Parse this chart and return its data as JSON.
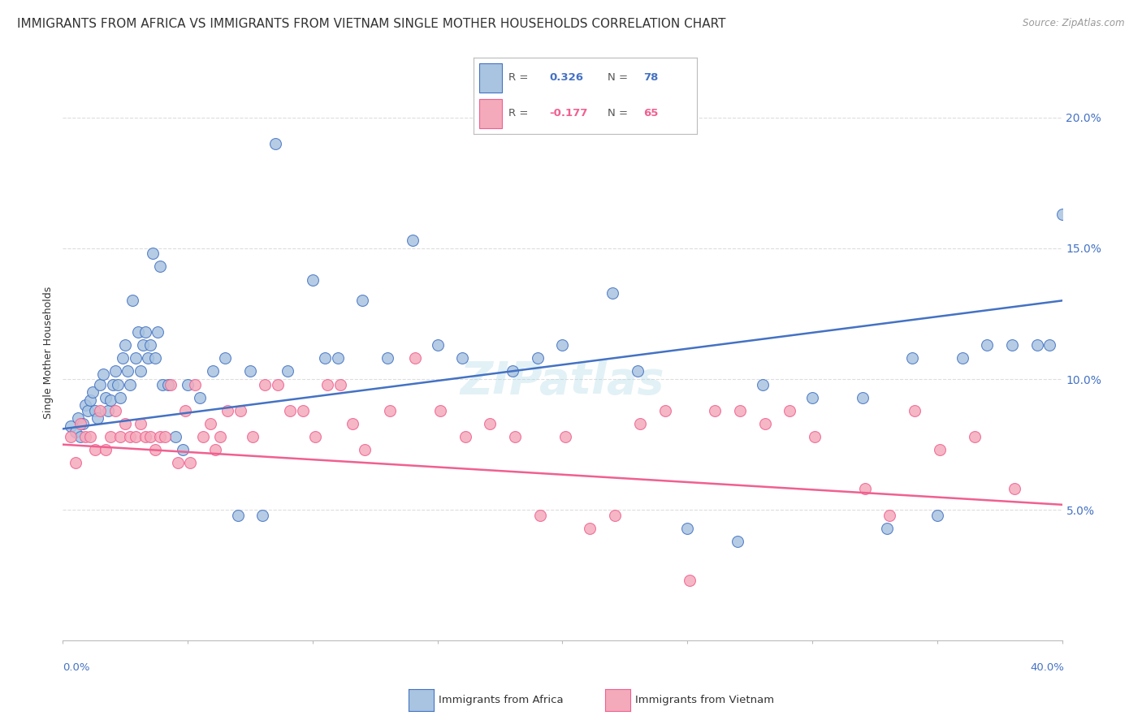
{
  "title": "IMMIGRANTS FROM AFRICA VS IMMIGRANTS FROM VIETNAM SINGLE MOTHER HOUSEHOLDS CORRELATION CHART",
  "source": "Source: ZipAtlas.com",
  "ylabel": "Single Mother Households",
  "legend_africa": "Immigrants from Africa",
  "legend_vietnam": "Immigrants from Vietnam",
  "legend_r_africa": "R =  0.326",
  "legend_n_africa": "N = 78",
  "legend_r_vietnam": "R = -0.177",
  "legend_n_vietnam": "N = 65",
  "color_africa": "#A8C4E0",
  "color_vietnam": "#F4AABB",
  "color_africa_line": "#4472C4",
  "color_vietnam_line": "#F06090",
  "africa_x": [
    0.3,
    0.5,
    0.6,
    0.7,
    0.8,
    0.9,
    1.0,
    1.1,
    1.2,
    1.3,
    1.4,
    1.5,
    1.6,
    1.7,
    1.8,
    1.9,
    2.0,
    2.1,
    2.2,
    2.3,
    2.4,
    2.5,
    2.6,
    2.7,
    2.8,
    2.9,
    3.0,
    3.1,
    3.2,
    3.3,
    3.4,
    3.5,
    3.6,
    3.7,
    3.8,
    3.9,
    4.0,
    4.2,
    4.5,
    4.8,
    5.0,
    5.5,
    6.0,
    6.5,
    7.0,
    7.5,
    8.0,
    8.5,
    9.0,
    10.0,
    10.5,
    11.0,
    12.0,
    13.0,
    14.0,
    15.0,
    16.0,
    18.0,
    19.0,
    20.0,
    22.0,
    23.0,
    25.0,
    27.0,
    28.0,
    30.0,
    32.0,
    33.0,
    34.0,
    35.0,
    36.0,
    37.0,
    38.0,
    39.0,
    39.5,
    40.0,
    40.5,
    41.0
  ],
  "africa_y": [
    8.2,
    8.0,
    8.5,
    7.8,
    8.3,
    9.0,
    8.8,
    9.2,
    9.5,
    8.8,
    8.5,
    9.8,
    10.2,
    9.3,
    8.8,
    9.2,
    9.8,
    10.3,
    9.8,
    9.3,
    10.8,
    11.3,
    10.3,
    9.8,
    13.0,
    10.8,
    11.8,
    10.3,
    11.3,
    11.8,
    10.8,
    11.3,
    14.8,
    10.8,
    11.8,
    14.3,
    9.8,
    9.8,
    7.8,
    7.3,
    9.8,
    9.3,
    10.3,
    10.8,
    4.8,
    10.3,
    4.8,
    19.0,
    10.3,
    13.8,
    10.8,
    10.8,
    13.0,
    10.8,
    15.3,
    11.3,
    10.8,
    10.3,
    10.8,
    11.3,
    13.3,
    10.3,
    4.3,
    3.8,
    9.8,
    9.3,
    9.3,
    4.3,
    10.8,
    4.8,
    10.8,
    11.3,
    11.3,
    11.3,
    11.3,
    16.3,
    11.3,
    11.3
  ],
  "vietnam_x": [
    0.3,
    0.5,
    0.7,
    0.9,
    1.1,
    1.3,
    1.5,
    1.7,
    1.9,
    2.1,
    2.3,
    2.5,
    2.7,
    2.9,
    3.1,
    3.3,
    3.5,
    3.7,
    3.9,
    4.1,
    4.3,
    4.6,
    4.9,
    5.1,
    5.3,
    5.6,
    5.9,
    6.1,
    6.3,
    6.6,
    7.1,
    7.6,
    8.1,
    8.6,
    9.1,
    9.6,
    10.1,
    10.6,
    11.1,
    11.6,
    12.1,
    13.1,
    14.1,
    15.1,
    16.1,
    17.1,
    18.1,
    19.1,
    20.1,
    21.1,
    22.1,
    23.1,
    24.1,
    25.1,
    26.1,
    27.1,
    28.1,
    29.1,
    30.1,
    32.1,
    33.1,
    34.1,
    35.1,
    36.5,
    38.1
  ],
  "vietnam_y": [
    7.8,
    6.8,
    8.3,
    7.8,
    7.8,
    7.3,
    8.8,
    7.3,
    7.8,
    8.8,
    7.8,
    8.3,
    7.8,
    7.8,
    8.3,
    7.8,
    7.8,
    7.3,
    7.8,
    7.8,
    9.8,
    6.8,
    8.8,
    6.8,
    9.8,
    7.8,
    8.3,
    7.3,
    7.8,
    8.8,
    8.8,
    7.8,
    9.8,
    9.8,
    8.8,
    8.8,
    7.8,
    9.8,
    9.8,
    8.3,
    7.3,
    8.8,
    10.8,
    8.8,
    7.8,
    8.3,
    7.8,
    4.8,
    7.8,
    4.3,
    4.8,
    8.3,
    8.8,
    2.3,
    8.8,
    8.8,
    8.3,
    8.8,
    7.8,
    5.8,
    4.8,
    8.8,
    7.3,
    7.8,
    5.8
  ],
  "xlim": [
    0,
    40
  ],
  "ylim": [
    0,
    22
  ],
  "ytick_vals": [
    5,
    10,
    15,
    20
  ],
  "xtick_vals": [
    0,
    5,
    10,
    15,
    20,
    25,
    30,
    35,
    40
  ],
  "background_color": "#FFFFFF",
  "grid_color": "#DDDDDD",
  "africa_line_start_y": 8.1,
  "africa_line_end_y": 13.0,
  "vietnam_line_start_y": 7.5,
  "vietnam_line_end_y": 5.2
}
